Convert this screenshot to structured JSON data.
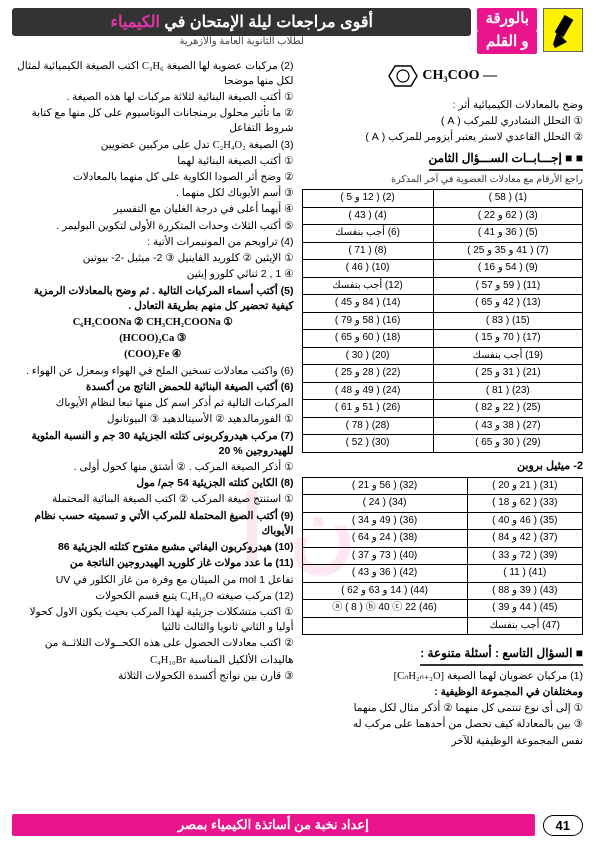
{
  "header": {
    "title_pre": "أقوى مراجعات ليلة الإمتحان في ",
    "title_hi": "الكيمياء",
    "subtitle": "لطلاب الثانوية العامة والأزهرية",
    "badge_l1": "بالورقة",
    "badge_l2": "و القلم"
  },
  "molecule": "CH₃COO —",
  "right": {
    "intro": "وضح بالمعادلات الكيميائية أثر :",
    "a": "① التحلل النشادري للمركب ( A )",
    "b": "② التحلل القاعدي لاستر يعتبر أيزومر للمركب ( A )",
    "q8_head": "■ إجـــابــات الســـؤال الثامن",
    "q8_note": "راجع الأرقام مع معادلات العضوية في آخر المذكرة",
    "tbl1": [
      [
        "(1)  ( 58 )",
        "(2)  ( 12 و 5 )"
      ],
      [
        "(3)  ( 62 و 22 )",
        "(4)  ( 43 )"
      ],
      [
        "(5)  ( 36 و 41 )",
        "(6)  أجب بنفسك"
      ],
      [
        "(7)  ( 41 و 35 و 25 )",
        "(8)  ( 71 )"
      ],
      [
        "(9)  ( 54 و 16 )",
        "(10)  ( 46 )"
      ],
      [
        "(11)  ( 59 و 57 )",
        "(12)  أجب بنفسك"
      ],
      [
        "(13)  ( 42 و 65 )",
        "(14)  ( 84 و 45 )"
      ],
      [
        "(15)  ( 83 )",
        "(16)  ( 58 و 79 )"
      ],
      [
        "(17)  ( 70 و 15 )",
        "(18)  ( 60 و 65 )"
      ],
      [
        "(19)  أجب بنفسك",
        "(20)  ( 30 )"
      ],
      [
        "(21)  ( 31 و 25 )",
        "(22)  ( 28 و 25 )"
      ],
      [
        "(23)  ( 81 )",
        "(24)  ( 49 و 48 )"
      ],
      [
        "(25)  ( 22 و 82 )",
        "(26)  ( 51 و 61 )"
      ],
      [
        "(27)  ( 38 و 43 )",
        "(28)  ( 78 )"
      ],
      [
        "(29)  ( 30 و 65 )",
        "(30)  ( 52 )"
      ]
    ],
    "mb_head": "2- ميثيل بروبن",
    "tbl2": [
      [
        "(31)  ( 21 و 20 )",
        "(32)  ( 56 و 21 )"
      ],
      [
        "(33)  ( 62 و 18 )",
        "(34)  ( 24 )"
      ],
      [
        "(35)  ( 46 و 40 )",
        "(36)  ( 49 و 34 )"
      ],
      [
        "(37)  ( 42 و 84 )",
        "(38)  ( 24 و 64 )"
      ],
      [
        "(39)  ( 72 و 33 )",
        "(40)  ( 73 و 37 )"
      ],
      [
        "(41)  ( 11 )",
        "(42)  ( 36 و 43 )"
      ],
      [
        "(43)  ( 39 و 88 )",
        "(44)  ( 14 و 63 و 62 )"
      ],
      [
        "(45)  ( 44 و 39 )",
        "(46)  ⓐ ( 8 )  ⓑ 40  ⓒ 22"
      ],
      [
        "(47)  أجب بنفسك",
        ""
      ]
    ],
    "q9_head": "■ السؤال التاسع : أسئلة متنوعة :",
    "q9_1a": "(1) مركبان عضويان لهما الصيغة ",
    "q9_1b": "[CₙH₂ₙ₊₂O]",
    "q9_2": "ومختلفان في المجموعة الوظيفية :",
    "q9_3": "① إلى أى نوع تنتمى كل منهما   ② أذكر مثال لكل منهما",
    "q9_4": "③ بين بالمعادلة كيف تحصل من أحدهما على مركب له",
    "q9_5": "نفس المجموعة الوظيفية للآخر"
  },
  "left": {
    "p1a": "(2) مركبات عضوية لها الصيغة ",
    "p1b": "C₃H₆",
    "p1c": " اكتب الصيغة الكيميائية لمثال لكل منها موضحا",
    "p2": "① أكتب الصيغة البنائية لثلاثة مركبات لها هذه الصيغة .",
    "p3": "② ما تأثير محلول برمنجانات البوتاسيوم على كل منها مع كتابة شروط التفاعل",
    "p4a": "(3) الصيغة ",
    "p4b": "C₂H₄O₂",
    "p4c": " تدل على مركبين عضويين",
    "p5": "① أكتب الصيغة البنائية لهما",
    "p6": "② وضح أثر الصودا الكاوية على كل منهما بالمعادلات",
    "p7": "③ أسم الأيوباك لكل منهما .",
    "p8": "④ أيهما أعلى في درجة الغليان مع التفسير",
    "p9": "⑤ أكتب الثلاث وحدات المتكررة الأولى لتكوين البوليمر .",
    "p10": "(4) تراويحم     من المونيمرات الأتية :",
    "p11": "① الإيثين   ② كلوريد الفاينيل   ③ 2- ميثيل -2- بيوتين",
    "p12": "④ 1 , 2 ثنائي كلورو إيثين",
    "p13": "(5) أكتب أسماء المركبات التالية . ثم وضح بالمعادلات الرمزية كيفية تحضير كل منهم بطريقة التعادل .",
    "f1": "C₆H₅COONa  ②   CH₃CH₂COONa  ①",
    "f2": "(HCOO)₂Ca  ③",
    "f3": "(COO)₂Fe  ④",
    "p14": "(6) واكتب معادلات تسخين الملح في الهواء وبمعزل عن الهواء .",
    "p15": "(6) أكتب الصيغة البنائية للحمض الناتج من أكسدة",
    "p16": "المركبات التالية ثم أذكر اسم كل منها تبعا لنظام الأيوباك",
    "p17": "① الفورمالدهيد   ② الأسيتالدهيد   ③ البيوتانول",
    "p18": "(7) مركب هيدروكربونى كتلته الجزيئية 30 جم و النسبة المئوية للهيدروجين % 20",
    "p19": "① أذكر الصيغة المركب .   ② أشتق منها كحول أولى .",
    "p20": "(8) الكاين كتلته الجزيئية 54 جم/ مول",
    "p21": "① استنتج صيغة المركب   ② اكتب الصيغة البنائية المحتملة",
    "p22": "(9) أكتب الصيغ المحتملة للمركب الأتي و تسميته حسب نظام الأيوباك",
    "p23": "(10) هيدروكربون اليفاتي مشبع مفتوح كتلته الجزيئية 86",
    "p24": "(11) ما عدد مولات غاز كلوريد الهيدروجين الناتجة من",
    "p25": "تفاعل 1 mol من الميثان مع وفرة من غاز الكلور في UV",
    "p26a": "(12) مركب صيغته ",
    "p26b": "C₄H₁₀O",
    "p26c": " يتبع قسم الكحولات",
    "p27": "① اكتب متشكلات جزيئية لهذا المركب بحيث يكون الاول كحولا أوليا و الثاني ثانويا والثالث ثالثيا",
    "p28": "② اكتب معادلات الحصول على هذه الكحــولات الثلاثــة من",
    "p29a": "هاليدات الألكيل المناسبة ",
    "p29b": "C₄H₁₀Br",
    "p30": "③ قارن بين نواتج أكسدة الكحولات الثلاثة"
  },
  "footer": {
    "bar": "إعداد نخبة من أساتذة الكيمياء بمصر",
    "page": "41"
  },
  "colors": {
    "magenta": "#ea148c",
    "dark": "#333333",
    "yellow": "#fff200"
  }
}
